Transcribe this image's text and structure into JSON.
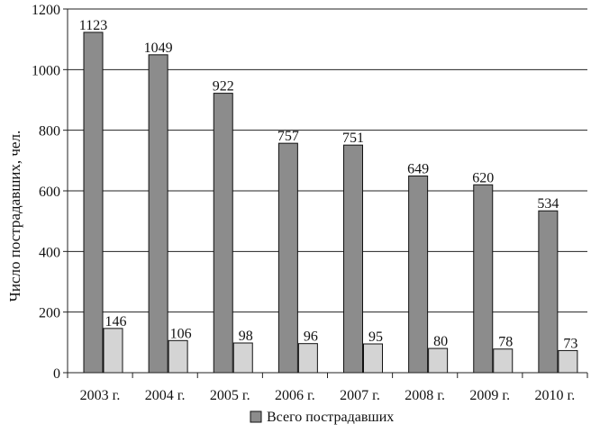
{
  "chart_data": {
    "type": "bar",
    "title": "",
    "xlabel": "",
    "ylabel": "Число пострадавших, чел.",
    "ylim": [
      0,
      1200
    ],
    "yticks": [
      0,
      200,
      400,
      600,
      800,
      1000,
      1200
    ],
    "grid": true,
    "legend": "bottom",
    "categories": [
      "2003 г.",
      "2004 г.",
      "2005 г.",
      "2006 г.",
      "2007 г.",
      "2008 г.",
      "2009 г.",
      "2010 г."
    ],
    "series": [
      {
        "name": "Всего пострадавших",
        "values": [
          1123,
          1049,
          922,
          757,
          751,
          649,
          620,
          534
        ],
        "color": "#8c8c8c"
      },
      {
        "values": [
          146,
          106,
          98,
          96,
          95,
          80,
          78,
          73
        ],
        "color": "#d4d4d4"
      }
    ]
  }
}
